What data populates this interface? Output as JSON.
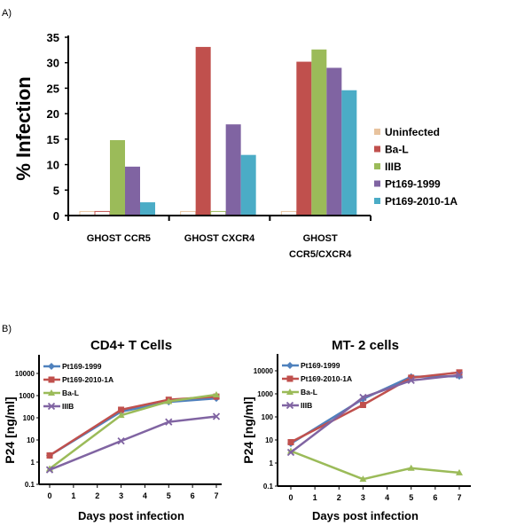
{
  "panel_labels": {
    "a": "A)",
    "b": "B)"
  },
  "chart_data": [
    {
      "type": "bar",
      "title": "",
      "ylabel": "% Infection",
      "xlabel": "",
      "ylim": [
        0,
        35
      ],
      "yticks": [
        0,
        5,
        10,
        15,
        20,
        25,
        30,
        35
      ],
      "categories": [
        "GHOST CCR5",
        "GHOST CXCR4",
        "GHOST CCR5/CXCR4"
      ],
      "category_lines": [
        [
          "GHOST CCR5"
        ],
        [
          "GHOST CXCR4"
        ],
        [
          "GHOST",
          "CCR5/CXCR4"
        ]
      ],
      "legend_position": "right",
      "series": [
        {
          "name": "Uninfected",
          "color": "#e8c39e",
          "values": [
            0.8,
            0.8,
            0.8
          ]
        },
        {
          "name": "Ba-L",
          "color": "#c0504d",
          "values": [
            0.8,
            33.1,
            30.2
          ]
        },
        {
          "name": "IIIB",
          "color": "#9bbb59",
          "values": [
            14.8,
            0.8,
            32.6
          ]
        },
        {
          "name": "Pt169-1999",
          "color": "#8064a2",
          "values": [
            9.6,
            17.9,
            29.0
          ]
        },
        {
          "name": "Pt169-2010-1A",
          "color": "#4bacc6",
          "values": [
            2.6,
            11.9,
            24.6
          ]
        }
      ]
    },
    {
      "type": "line",
      "title": "CD4+ T Cells",
      "xlabel": "Days post infection",
      "ylabel": "P24 [ng/ml]",
      "yscale": "log",
      "ylim": [
        0.1,
        100000
      ],
      "yticks": [
        "0.1",
        "1",
        "10",
        "100",
        "1000",
        "10000"
      ],
      "xlim": [
        0,
        7
      ],
      "xticks": [
        "0",
        "1",
        "2",
        "3",
        "4",
        "5",
        "6",
        "7"
      ],
      "legend_position": "top-left",
      "x": [
        0,
        3,
        5,
        7
      ],
      "series": [
        {
          "name": "Pt169-1999",
          "color": "#4f81bd",
          "marker": "diamond",
          "values": [
            2,
            190,
            520,
            750
          ]
        },
        {
          "name": "Pt169-2010-1A",
          "color": "#c0504d",
          "marker": "square",
          "values": [
            2,
            230,
            650,
            900
          ]
        },
        {
          "name": "Ba-L",
          "color": "#9bbb59",
          "marker": "triangle",
          "values": [
            0.5,
            130,
            550,
            1100
          ]
        },
        {
          "name": "IIIB",
          "color": "#8064a2",
          "marker": "x",
          "values": [
            0.45,
            9,
            65,
            115
          ]
        }
      ]
    },
    {
      "type": "line",
      "title": "MT- 2 cells",
      "xlabel": "Days post infection",
      "ylabel": "P24 [ng/ml]",
      "yscale": "log",
      "ylim": [
        0.1,
        100000
      ],
      "yticks": [
        "0.1",
        "1",
        "10",
        "100",
        "1000",
        "10000"
      ],
      "xlim": [
        0,
        7
      ],
      "xticks": [
        "0",
        "1",
        "2",
        "3",
        "4",
        "5",
        "6",
        "7"
      ],
      "legend_position": "top-left",
      "x": [
        0,
        3,
        5,
        7
      ],
      "series": [
        {
          "name": "Pt169-1999",
          "color": "#4f81bd",
          "marker": "diamond",
          "values": [
            7,
            600,
            5500,
            5800
          ]
        },
        {
          "name": "Pt169-2010-1A",
          "color": "#c0504d",
          "marker": "square",
          "values": [
            8,
            330,
            5000,
            8500
          ]
        },
        {
          "name": "Ba-L",
          "color": "#9bbb59",
          "marker": "triangle",
          "values": [
            3.3,
            0.2,
            0.6,
            0.38
          ]
        },
        {
          "name": "IIIB",
          "color": "#8064a2",
          "marker": "x",
          "values": [
            2.9,
            700,
            3800,
            6500
          ]
        }
      ]
    }
  ]
}
